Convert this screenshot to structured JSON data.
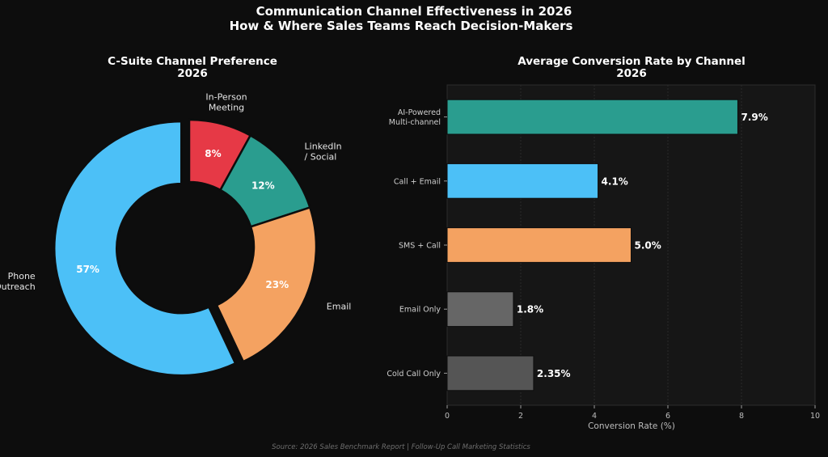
{
  "header": {
    "title_line1": "Communication Channel Effectiveness in 2026",
    "title_line2": "How & Where Sales Teams Reach Decision-Makers"
  },
  "footer": {
    "source": "Source: 2026 Sales Benchmark Report | Follow-Up Call Marketing Statistics"
  },
  "chart_data": [
    {
      "type": "pie",
      "title_line1": "C-Suite Channel Preference",
      "title_line2": "2026",
      "slices": [
        {
          "label_lines": [
            "In-Person",
            "Meeting"
          ],
          "value": 8,
          "display": "8%",
          "color": "#e63946"
        },
        {
          "label_lines": [
            "LinkedIn",
            "/ Social"
          ],
          "value": 12,
          "display": "12%",
          "color": "#2a9d8f"
        },
        {
          "label_lines": [
            "Email"
          ],
          "value": 23,
          "display": "23%",
          "color": "#f4a261"
        },
        {
          "label_lines": [
            "Phone",
            "Outreach"
          ],
          "value": 57,
          "display": "57%",
          "color": "#4cc0f7"
        }
      ],
      "exploded": "Phone Outreach",
      "hole": "donut"
    },
    {
      "type": "bar",
      "orientation": "horizontal",
      "title_line1": "Average Conversion Rate by Channel",
      "title_line2": "2026",
      "categories": [
        {
          "label_lines": [
            "AI-Powered",
            "Multi-channel"
          ],
          "value": 7.9,
          "display": "7.9%",
          "color": "#2a9d8f"
        },
        {
          "label_lines": [
            "Call + Email"
          ],
          "value": 4.1,
          "display": "4.1%",
          "color": "#4cc0f7"
        },
        {
          "label_lines": [
            "SMS + Call"
          ],
          "value": 5.0,
          "display": "5.0%",
          "color": "#f4a261"
        },
        {
          "label_lines": [
            "Email Only"
          ],
          "value": 1.8,
          "display": "1.8%",
          "color": "#666666"
        },
        {
          "label_lines": [
            "Cold Call Only"
          ],
          "value": 2.35,
          "display": "2.35%",
          "color": "#555555"
        }
      ],
      "xlabel": "Conversion Rate (%)",
      "xlim": [
        0,
        10
      ],
      "xticks": [
        0,
        2,
        4,
        6,
        8,
        10
      ],
      "grid": "vertical"
    }
  ]
}
